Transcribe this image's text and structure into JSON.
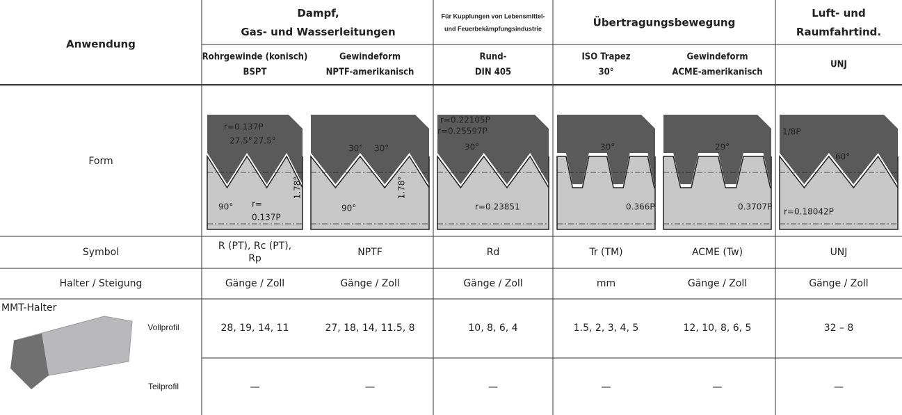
{
  "header": {
    "anwendung": "Anwendung",
    "groups": [
      [
        "Dampf,",
        "Gas- und Wasserleitungen"
      ],
      [
        "Für Kupplungen von Lebensmittel-",
        "und Feuerbekämpfungsindustrie"
      ],
      [
        "Übertragungsbewegung"
      ],
      [
        "Luft- und",
        "Raumfahrtind."
      ]
    ],
    "columns": [
      [
        "Rohrgewinde (konisch)",
        "BSPT"
      ],
      [
        "Gewindeform",
        "NPTF-amerikanisch"
      ],
      [
        "Rund-",
        "DIN 405"
      ],
      [
        "ISO Trapez",
        "30°"
      ],
      [
        "Gewindeform",
        "ACME-amerikanisch"
      ],
      [
        "UNJ"
      ]
    ]
  },
  "form": {
    "label": "Form",
    "diagrams": [
      [
        "r=0.137P",
        "27.5°",
        "27.5°",
        "90°",
        "r=",
        "0.137P",
        "1.78°"
      ],
      [
        "30°",
        "30°",
        "90°",
        "1.78°"
      ],
      [
        "r=0.22105P",
        "r=0.25597P",
        "30°",
        "r=0.23851"
      ],
      [
        "30°",
        "0.366P"
      ],
      [
        "29°",
        "0.3707P"
      ],
      [
        "1/8P",
        "60°",
        "r=0.18042P"
      ]
    ]
  },
  "symbol": {
    "label": "Symbol",
    "values": [
      [
        "R (PT), Rc (PT),",
        "Rp"
      ],
      [
        "NPTF"
      ],
      [
        "Rd"
      ],
      [
        "Tr (TM)"
      ],
      [
        "ACME (Tw)"
      ],
      [
        "UNJ"
      ]
    ]
  },
  "halter": {
    "label": "Halter / Steigung",
    "values": [
      "Gänge / Zoll",
      "Gänge / Zoll",
      "Gänge / Zoll",
      "mm",
      "Gänge / Zoll",
      "Gänge / Zoll"
    ]
  },
  "mmt": {
    "label": "MMT-Halter",
    "vollprofil": {
      "label": "Vollprofil",
      "values": [
        "28, 19, 14, 11",
        "27, 18, 14, 11.5, 8",
        "10, 8, 6, 4",
        "1.5, 2, 3, 4, 5",
        "12, 10, 8, 6, 5",
        "32 – 8"
      ]
    },
    "teilprofil": {
      "label": "Teilprofil",
      "values": [
        "—",
        "—",
        "—",
        "—",
        "—",
        "—"
      ]
    }
  }
}
